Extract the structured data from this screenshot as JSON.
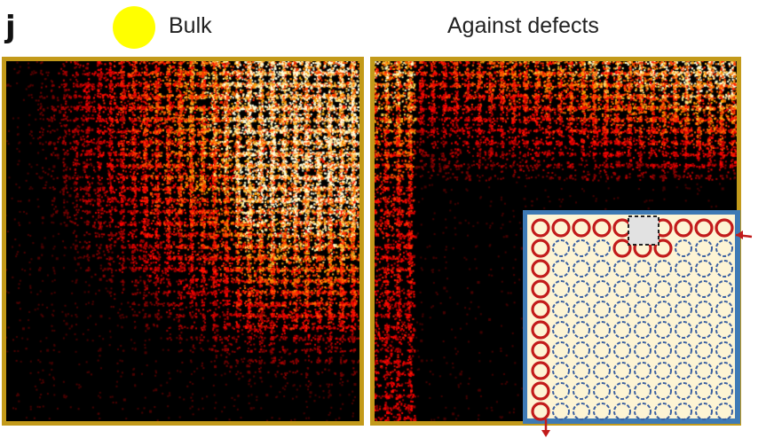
{
  "figure": {
    "panel_letter": "j",
    "legend_label": "Bulk",
    "right_title": "Against defects",
    "colors": {
      "bulk_marker": "#ffff00",
      "frame": "#c39a1a",
      "inset_border": "#3e7ab5",
      "inset_fill": "#fdf4d4",
      "edge_rings": "#c21b1b",
      "bulk_rings": "#3a5fa0",
      "defect_cell": "#e2e2e2",
      "arrows": "#c21b1b"
    }
  }
}
